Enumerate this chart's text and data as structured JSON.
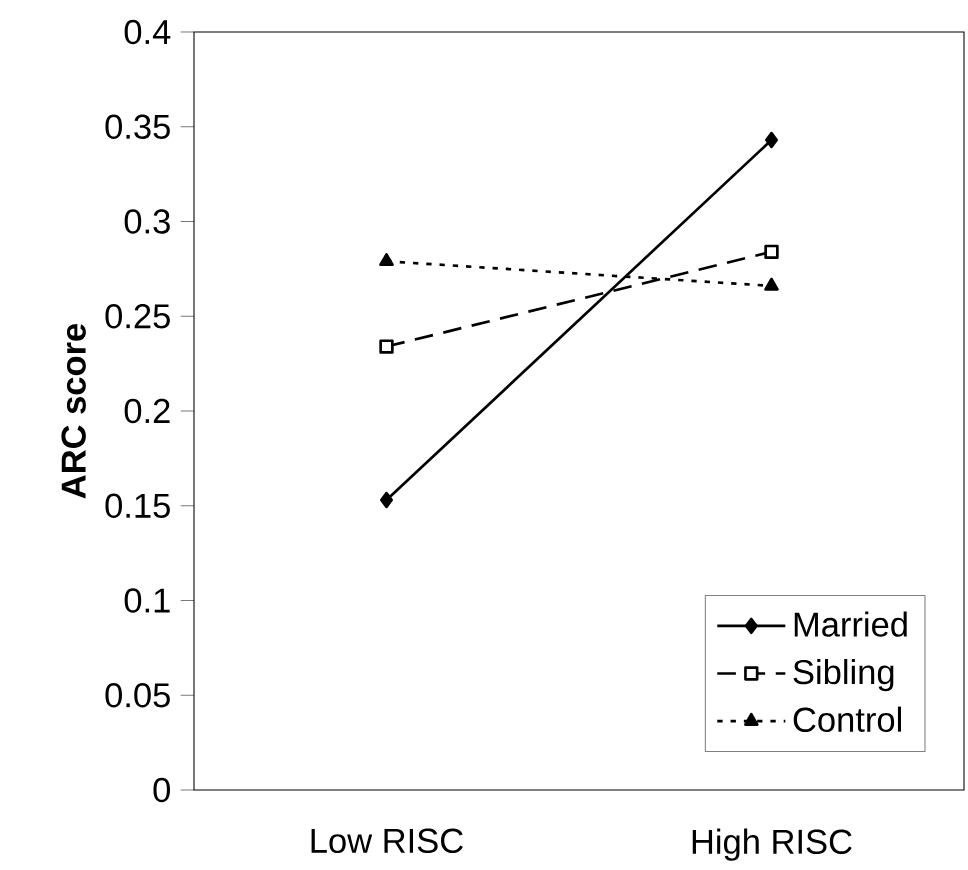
{
  "chart_data": {
    "type": "line",
    "ylabel": "ARC score",
    "categories": [
      "Low RISC",
      "High RISC"
    ],
    "series": [
      {
        "name": "Married",
        "color": "#000000",
        "values": [
          0.153,
          0.343
        ],
        "marker": "diamond",
        "line_style": "solid"
      },
      {
        "name": "Sibling",
        "color": "#000000",
        "values": [
          0.234,
          0.284
        ],
        "marker": "square",
        "line_style": "dashed"
      },
      {
        "name": "Control",
        "color": "#000000",
        "values": [
          0.279,
          0.266
        ],
        "marker": "triangle",
        "line_style": "dotted"
      }
    ],
    "ylim": [
      0,
      0.4
    ],
    "yticks": [
      0,
      0.05,
      0.1,
      0.15,
      0.2,
      0.25,
      0.3,
      0.35,
      0.4
    ],
    "grid": false,
    "legend": "bottom right"
  }
}
